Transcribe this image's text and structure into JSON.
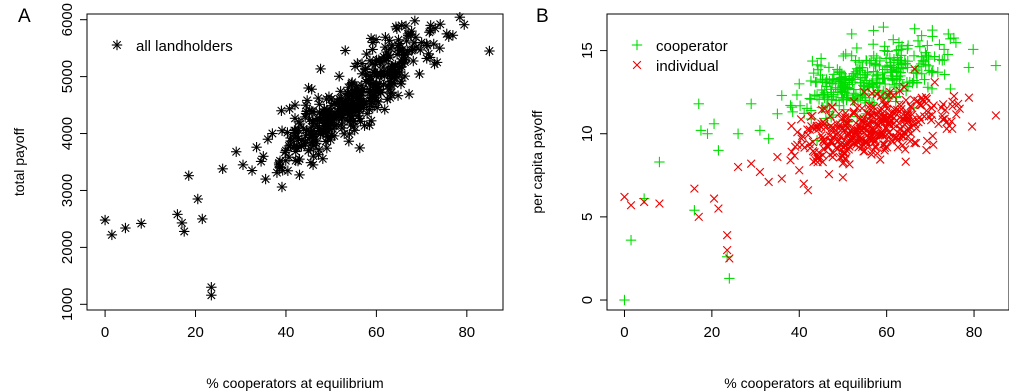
{
  "chart_data": [
    {
      "type": "scatter",
      "panel_label": "A",
      "xlabel": "% cooperators at equilibrium",
      "ylabel": "total payoff",
      "xlim": [
        -4,
        88
      ],
      "ylim": [
        900,
        6100
      ],
      "xticks": [
        0,
        20,
        40,
        60,
        80
      ],
      "yticks": [
        1000,
        2000,
        3000,
        4000,
        5000,
        6000
      ],
      "legend_position": "top-left",
      "series": [
        {
          "name": "all landholders",
          "marker": "asterisk",
          "color": "#000000",
          "cluster": {
            "n": 420,
            "x_mean": 55,
            "x_sd": 8.5,
            "slope": 62,
            "intercept": 1200,
            "noise_sd": 300,
            "seed": 7
          },
          "points": [
            [
              0,
              2480
            ],
            [
              1.5,
              2220
            ],
            [
              4.5,
              2340
            ],
            [
              8,
              2420
            ],
            [
              16,
              2580
            ],
            [
              17,
              2430
            ],
            [
              17.5,
              2280
            ],
            [
              18.5,
              3260
            ],
            [
              20.5,
              2850
            ],
            [
              21.5,
              2500
            ],
            [
              23.5,
              1300
            ],
            [
              23.5,
              1160
            ],
            [
              26,
              3380
            ],
            [
              29,
              3680
            ],
            [
              30.5,
              3450
            ],
            [
              32.5,
              3350
            ],
            [
              33.5,
              3760
            ],
            [
              34.5,
              3510
            ],
            [
              35,
              3600
            ],
            [
              35.5,
              3200
            ],
            [
              36,
              3900
            ],
            [
              37,
              4000
            ],
            [
              38.5,
              3450
            ],
            [
              39,
              4400
            ],
            [
              40,
              3700
            ],
            [
              41,
              3800
            ],
            [
              42,
              4500
            ],
            [
              43,
              3550
            ],
            [
              45,
              4800
            ],
            [
              46,
              3450
            ],
            [
              67,
              5750
            ],
            [
              68.5,
              5980
            ],
            [
              70,
              5600
            ],
            [
              72,
              5900
            ],
            [
              73,
              5850
            ],
            [
              74,
              5500
            ],
            [
              76,
              5700
            ],
            [
              85,
              5450
            ]
          ]
        }
      ]
    },
    {
      "type": "scatter",
      "panel_label": "B",
      "xlabel": "% cooperators at equilibrium",
      "ylabel": "per capita payoff",
      "xlim": [
        -4,
        88
      ],
      "ylim": [
        -0.6,
        17.2
      ],
      "xticks": [
        0,
        20,
        40,
        60,
        80
      ],
      "yticks": [
        0,
        5,
        10,
        15
      ],
      "legend_position": "top-left",
      "series": [
        {
          "name": "cooperator",
          "marker": "plus",
          "color": "#00dd00",
          "cluster": {
            "n": 320,
            "x_mean": 56,
            "x_sd": 8.5,
            "slope": 0.075,
            "intercept": 9.0,
            "noise_sd": 0.95,
            "seed": 11
          },
          "points": [
            [
              0,
              0
            ],
            [
              1.5,
              3.6
            ],
            [
              4.5,
              6.1
            ],
            [
              8,
              8.3
            ],
            [
              16,
              5.4
            ],
            [
              17,
              11.8
            ],
            [
              17.5,
              10.2
            ],
            [
              19,
              10.0
            ],
            [
              20.5,
              10.6
            ],
            [
              21.5,
              9.0
            ],
            [
              23.5,
              2.6
            ],
            [
              24,
              1.3
            ],
            [
              26,
              10.0
            ],
            [
              29,
              11.8
            ],
            [
              31,
              10.2
            ],
            [
              33,
              9.7
            ],
            [
              35,
              11.2
            ],
            [
              36,
              12.3
            ],
            [
              38,
              11.7
            ],
            [
              40,
              13.0
            ],
            [
              52,
              16.0
            ],
            [
              57,
              16.2
            ],
            [
              68,
              15.9
            ],
            [
              85,
              14.1
            ]
          ]
        },
        {
          "name": "individual",
          "marker": "cross",
          "color": "#ee0000",
          "cluster": {
            "n": 380,
            "x_mean": 55,
            "x_sd": 9.0,
            "slope": 0.06,
            "intercept": 6.8,
            "noise_sd": 0.95,
            "seed": 23
          },
          "points": [
            [
              0,
              6.2
            ],
            [
              1.5,
              5.7
            ],
            [
              4.5,
              5.9
            ],
            [
              8,
              5.8
            ],
            [
              16,
              6.7
            ],
            [
              17,
              5.0
            ],
            [
              20.5,
              6.1
            ],
            [
              21.5,
              5.5
            ],
            [
              23.5,
              3.9
            ],
            [
              23.5,
              3.0
            ],
            [
              24,
              2.5
            ],
            [
              26,
              8.0
            ],
            [
              29,
              8.2
            ],
            [
              31,
              7.7
            ],
            [
              33,
              7.1
            ],
            [
              35,
              8.6
            ],
            [
              36,
              7.3
            ],
            [
              38,
              8.4
            ],
            [
              40,
              7.8
            ],
            [
              42,
              6.6
            ],
            [
              64,
              12.8
            ],
            [
              69,
              12.2
            ],
            [
              71,
              13.1
            ],
            [
              75,
              10.3
            ],
            [
              85,
              11.1
            ]
          ]
        }
      ]
    }
  ]
}
